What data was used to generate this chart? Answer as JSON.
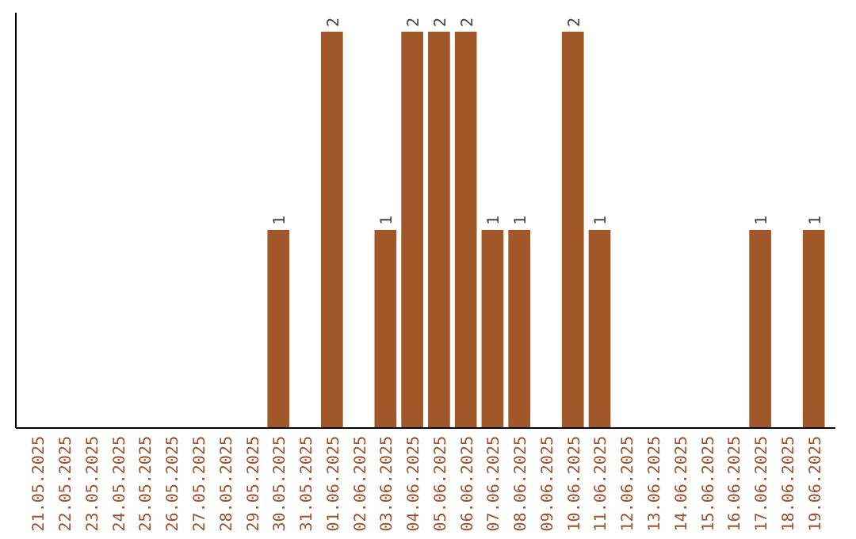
{
  "chart_data": {
    "type": "bar",
    "categories": [
      "21.05.2025",
      "22.05.2025",
      "23.05.2025",
      "24.05.2025",
      "25.05.2025",
      "26.05.2025",
      "27.05.2025",
      "28.05.2025",
      "29.05.2025",
      "30.05.2025",
      "31.05.2025",
      "01.06.2025",
      "02.06.2025",
      "03.06.2025",
      "04.06.2025",
      "05.06.2025",
      "06.06.2025",
      "07.06.2025",
      "08.06.2025",
      "09.06.2025",
      "10.06.2025",
      "11.06.2025",
      "12.06.2025",
      "13.06.2025",
      "14.06.2025",
      "15.06.2025",
      "16.06.2025",
      "17.06.2025",
      "18.06.2025",
      "19.06.2025"
    ],
    "values": [
      0,
      0,
      0,
      0,
      0,
      0,
      0,
      0,
      0,
      1,
      0,
      2,
      0,
      1,
      2,
      2,
      2,
      1,
      1,
      0,
      2,
      1,
      0,
      0,
      0,
      0,
      0,
      1,
      0,
      1
    ],
    "value_labels": [
      null,
      null,
      null,
      null,
      null,
      null,
      null,
      null,
      null,
      "1",
      null,
      "2",
      null,
      "1",
      "2",
      "2",
      "2",
      "1",
      "1",
      null,
      "2",
      "1",
      null,
      null,
      null,
      null,
      null,
      "1",
      null,
      "1"
    ],
    "color": "#a0582a",
    "ylim": [
      0,
      2
    ],
    "tick_labels": "x"
  }
}
